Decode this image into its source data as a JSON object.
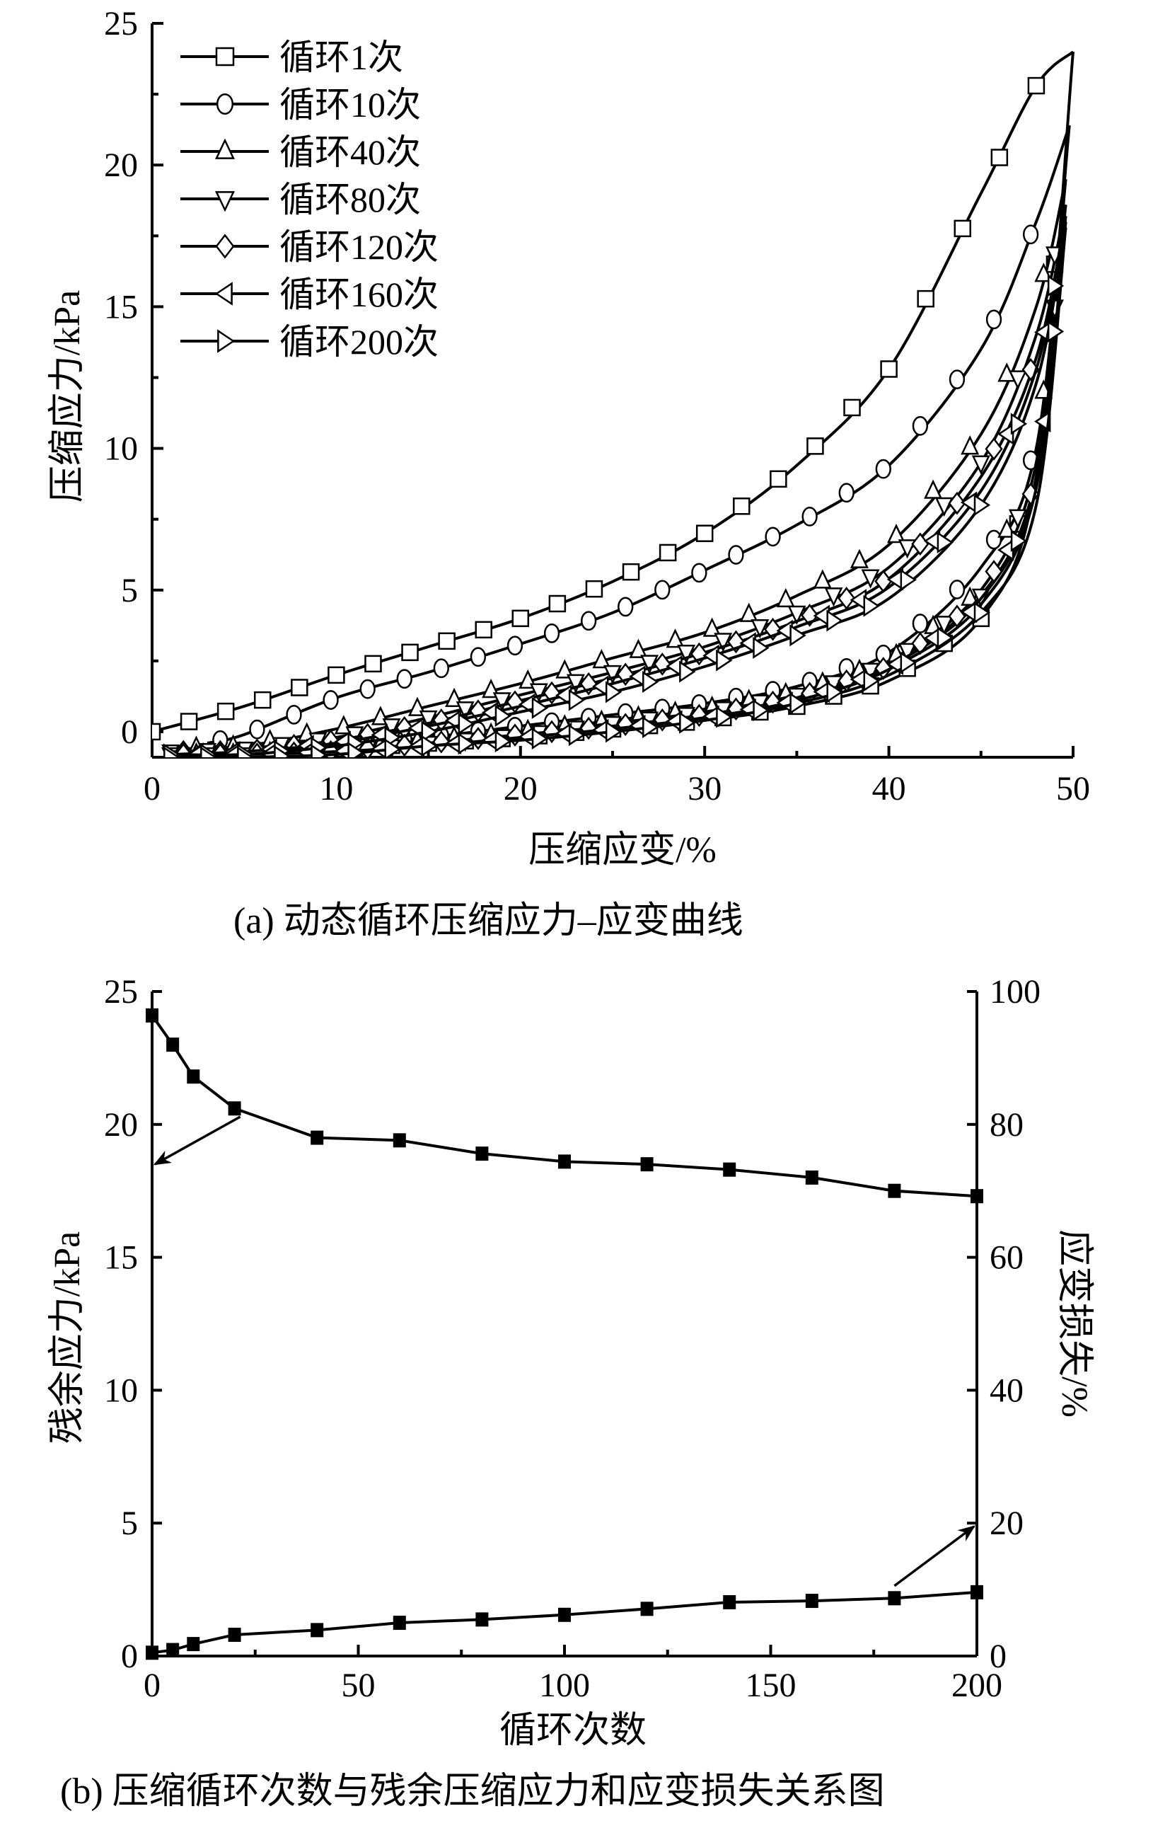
{
  "chart_data": [
    {
      "type": "line",
      "title": "",
      "caption": "(a) 动态循环压缩应力–应变曲线",
      "xlabel": "压缩应变/%",
      "ylabel": "压缩应力/kPa",
      "xlim": [
        0,
        50
      ],
      "ylim": [
        -0.9,
        25
      ],
      "xticks": [
        0,
        10,
        20,
        30,
        40,
        50
      ],
      "yticks": [
        0,
        5,
        10,
        15,
        20,
        25
      ],
      "grid": false,
      "legend_position": "top-left",
      "series": [
        {
          "name": "循环1次",
          "marker": "square",
          "loading": [
            [
              0,
              0
            ],
            [
              5,
              0.9
            ],
            [
              10,
              2.0
            ],
            [
              15,
              3.0
            ],
            [
              20,
              4.0
            ],
            [
              25,
              5.3
            ],
            [
              30,
              7.0
            ],
            [
              35,
              9.4
            ],
            [
              40,
              12.8
            ],
            [
              45,
              19.0
            ],
            [
              48,
              22.8
            ],
            [
              50,
              24.0
            ]
          ],
          "unloading": [
            [
              50,
              24.0
            ],
            [
              48,
              9.0
            ],
            [
              45,
              4.0
            ],
            [
              40,
              1.8
            ],
            [
              35,
              0.9
            ],
            [
              30,
              0.4
            ],
            [
              25,
              0.1
            ],
            [
              20,
              -0.2
            ],
            [
              15,
              -0.4
            ],
            [
              10,
              -0.6
            ],
            [
              5,
              -0.7
            ],
            [
              3,
              -0.8
            ]
          ]
        },
        {
          "name": "循环10次",
          "marker": "circle",
          "loading": [
            [
              3,
              -0.4
            ],
            [
              5,
              -0.1
            ],
            [
              10,
              1.2
            ],
            [
              15,
              2.1
            ],
            [
              20,
              3.1
            ],
            [
              25,
              4.2
            ],
            [
              30,
              5.7
            ],
            [
              35,
              7.3
            ],
            [
              40,
              9.4
            ],
            [
              45,
              13.5
            ],
            [
              48,
              18.0
            ],
            [
              49.8,
              21.4
            ]
          ],
          "unloading": [
            [
              49.8,
              21.4
            ],
            [
              48,
              10.0
            ],
            [
              45,
              5.8
            ],
            [
              40,
              2.8
            ],
            [
              35,
              1.6
            ],
            [
              30,
              1.0
            ],
            [
              25,
              0.6
            ],
            [
              20,
              0.2
            ],
            [
              15,
              -0.2
            ],
            [
              10,
              -0.5
            ],
            [
              5,
              -0.7
            ],
            [
              3,
              -0.8
            ]
          ]
        },
        {
          "name": "循环40次",
          "marker": "triangle-up",
          "loading": [
            [
              1,
              -0.6
            ],
            [
              5,
              -0.5
            ],
            [
              10,
              0.1
            ],
            [
              15,
              0.9
            ],
            [
              20,
              1.7
            ],
            [
              25,
              2.6
            ],
            [
              30,
              3.5
            ],
            [
              35,
              4.8
            ],
            [
              40,
              6.6
            ],
            [
              45,
              10.5
            ],
            [
              48,
              15.0
            ],
            [
              49.6,
              19.5
            ]
          ],
          "unloading": [
            [
              49.6,
              19.5
            ],
            [
              48,
              9.5
            ],
            [
              45,
              5.0
            ],
            [
              40,
              2.5
            ],
            [
              35,
              1.4
            ],
            [
              30,
              0.8
            ],
            [
              25,
              0.4
            ],
            [
              20,
              0.0
            ],
            [
              15,
              -0.3
            ],
            [
              10,
              -0.6
            ],
            [
              5,
              -0.8
            ],
            [
              1,
              -0.8
            ]
          ]
        },
        {
          "name": "循环80次",
          "marker": "triangle-down",
          "loading": [
            [
              1,
              -0.7
            ],
            [
              5,
              -0.6
            ],
            [
              10,
              -0.2
            ],
            [
              15,
              0.5
            ],
            [
              20,
              1.3
            ],
            [
              25,
              2.1
            ],
            [
              30,
              3.0
            ],
            [
              35,
              4.2
            ],
            [
              40,
              5.8
            ],
            [
              45,
              9.5
            ],
            [
              48,
              14.0
            ],
            [
              49.6,
              18.6
            ]
          ],
          "unloading": [
            [
              49.6,
              18.6
            ],
            [
              48,
              9.0
            ],
            [
              45,
              4.8
            ],
            [
              40,
              2.4
            ],
            [
              35,
              1.3
            ],
            [
              30,
              0.7
            ],
            [
              25,
              0.3
            ],
            [
              20,
              -0.1
            ],
            [
              15,
              -0.4
            ],
            [
              10,
              -0.7
            ],
            [
              5,
              -0.8
            ],
            [
              1,
              -0.8
            ]
          ]
        },
        {
          "name": "循环120次",
          "marker": "diamond",
          "loading": [
            [
              1,
              -0.7
            ],
            [
              5,
              -0.7
            ],
            [
              10,
              -0.3
            ],
            [
              15,
              0.3
            ],
            [
              20,
              1.1
            ],
            [
              25,
              1.9
            ],
            [
              30,
              2.8
            ],
            [
              35,
              3.9
            ],
            [
              40,
              5.4
            ],
            [
              45,
              9.0
            ],
            [
              48,
              13.2
            ],
            [
              49.6,
              18.2
            ]
          ],
          "unloading": [
            [
              49.6,
              18.2
            ],
            [
              48,
              8.8
            ],
            [
              45,
              4.7
            ],
            [
              40,
              2.3
            ],
            [
              35,
              1.2
            ],
            [
              30,
              0.6
            ],
            [
              25,
              0.2
            ],
            [
              20,
              -0.1
            ],
            [
              15,
              -0.4
            ],
            [
              10,
              -0.7
            ],
            [
              5,
              -0.8
            ],
            [
              1,
              -0.8
            ]
          ]
        },
        {
          "name": "循环160次",
          "marker": "triangle-left",
          "loading": [
            [
              1,
              -0.8
            ],
            [
              5,
              -0.7
            ],
            [
              10,
              -0.4
            ],
            [
              15,
              0.2
            ],
            [
              20,
              0.9
            ],
            [
              25,
              1.7
            ],
            [
              30,
              2.6
            ],
            [
              35,
              3.7
            ],
            [
              40,
              5.1
            ],
            [
              45,
              8.5
            ],
            [
              48,
              12.8
            ],
            [
              49.6,
              18.0
            ]
          ],
          "unloading": [
            [
              49.6,
              18.0
            ],
            [
              48,
              8.6
            ],
            [
              45,
              4.5
            ],
            [
              40,
              2.2
            ],
            [
              35,
              1.1
            ],
            [
              30,
              0.5
            ],
            [
              25,
              0.1
            ],
            [
              20,
              -0.2
            ],
            [
              15,
              -0.5
            ],
            [
              10,
              -0.7
            ],
            [
              5,
              -0.8
            ],
            [
              1,
              -0.8
            ]
          ]
        },
        {
          "name": "循环200次",
          "marker": "triangle-right",
          "loading": [
            [
              1,
              -0.8
            ],
            [
              5,
              -0.8
            ],
            [
              10,
              -0.5
            ],
            [
              15,
              0.0
            ],
            [
              20,
              0.7
            ],
            [
              25,
              1.4
            ],
            [
              30,
              2.3
            ],
            [
              35,
              3.4
            ],
            [
              40,
              4.7
            ],
            [
              45,
              8.0
            ],
            [
              48,
              12.3
            ],
            [
              49.6,
              17.8
            ]
          ],
          "unloading": [
            [
              49.6,
              17.8
            ],
            [
              48,
              8.0
            ],
            [
              45,
              4.2
            ],
            [
              40,
              2.0
            ],
            [
              35,
              1.0
            ],
            [
              30,
              0.4
            ],
            [
              25,
              0.0
            ],
            [
              20,
              -0.3
            ],
            [
              15,
              -0.5
            ],
            [
              10,
              -0.8
            ],
            [
              5,
              -0.9
            ],
            [
              1,
              -0.9
            ]
          ]
        }
      ]
    },
    {
      "type": "line",
      "title": "",
      "caption": "(b) 压缩循环次数与残余压缩应力和应变损失关系图",
      "xlabel": "循环次数",
      "ylabel": "残余应力/kPa",
      "ylabel_right": "应变损失/%",
      "xlim": [
        0,
        200
      ],
      "ylim": [
        0,
        25
      ],
      "ylim_right": [
        0,
        100
      ],
      "xticks": [
        0,
        50,
        100,
        150,
        200
      ],
      "yticks": [
        0,
        5,
        10,
        15,
        20,
        25
      ],
      "yticks_right": [
        0,
        20,
        40,
        60,
        80,
        100
      ],
      "grid": false,
      "x": [
        0,
        5,
        10,
        20,
        40,
        60,
        80,
        100,
        120,
        140,
        160,
        180,
        200
      ],
      "series": [
        {
          "name": "残余应力",
          "axis": "left",
          "marker": "filled-square",
          "values": [
            24.1,
            23.0,
            21.8,
            20.6,
            19.5,
            19.4,
            18.9,
            18.6,
            18.5,
            18.3,
            18.0,
            17.5,
            17.3
          ]
        },
        {
          "name": "应变损失",
          "axis": "right",
          "marker": "filled-square",
          "values": [
            0.5,
            0.9,
            1.8,
            3.2,
            3.9,
            5.0,
            5.5,
            6.2,
            7.1,
            8.1,
            8.3,
            8.7,
            9.6
          ]
        }
      ]
    }
  ]
}
